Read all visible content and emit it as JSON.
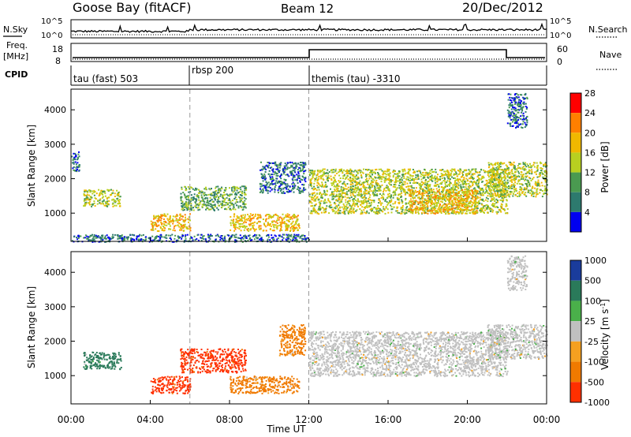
{
  "header": {
    "station": "Goose Bay (fitACF)",
    "beam": "Beam 12",
    "date": "20/Dec/2012"
  },
  "noise_panel": {
    "left_label": "N.Sky",
    "left_ticks": [
      "10^5",
      "10^0"
    ],
    "right_label": "N.Search",
    "right_ticks": [
      "10^5",
      "10^0"
    ]
  },
  "freq_panel": {
    "left_label_1": "Freq.",
    "left_label_2": "[MHz]",
    "left_ticks": [
      "18",
      "8"
    ],
    "right_label": "Nave",
    "right_ticks": [
      "60",
      "0"
    ]
  },
  "cpid": {
    "label": "CPID",
    "segments": [
      {
        "start_hour": 0,
        "text": "tau (fast) 503"
      },
      {
        "start_hour": 6,
        "text": "rbsp 200"
      },
      {
        "start_hour": 12,
        "text": "themis (tau) -3310"
      }
    ]
  },
  "axes": {
    "ylabel": "Slant Range [km]",
    "xlabel": "Time UT",
    "xticks": [
      "00:00",
      "04:00",
      "08:00",
      "12:00",
      "16:00",
      "20:00",
      "00:00"
    ],
    "yticks": [
      "1000",
      "2000",
      "3000",
      "4000"
    ]
  },
  "power_colorbar": {
    "label": "Power [dB]",
    "ticks": [
      "28",
      "24",
      "20",
      "16",
      "12",
      "8",
      "4"
    ],
    "colors": [
      "#ff0000",
      "#ff7f00",
      "#f0b800",
      "#b8d020",
      "#4a9a50",
      "#2d7a6e",
      "#0000f0"
    ]
  },
  "velocity_colorbar": {
    "label": "Velocity [m s",
    "label_sup": "-1",
    "label_end": "]",
    "ticks": [
      "1000",
      "500",
      "100",
      "25",
      "-25",
      "-100",
      "-500",
      "-1000"
    ],
    "colors": [
      "#1a3c9c",
      "#2a7a5a",
      "#4ab04a",
      "#c0c0c0",
      "#f5a020",
      "#f07a00",
      "#ff3000"
    ]
  },
  "chart_data": [
    {
      "type": "heatmap",
      "title": "Power",
      "xlabel": "Time UT",
      "ylabel": "Slant Range [km]",
      "xlim": [
        0,
        24
      ],
      "ylim": [
        180,
        4600
      ],
      "colorbar": "Power [dB]",
      "regions": [
        {
          "t": [
            0.0,
            0.4
          ],
          "r": [
            2200,
            2800
          ],
          "value": 8
        },
        {
          "t": [
            0.6,
            2.5
          ],
          "r": [
            1200,
            1700
          ],
          "value": 16
        },
        {
          "t": [
            4.0,
            6.0
          ],
          "r": [
            500,
            1000
          ],
          "value": 20
        },
        {
          "t": [
            5.5,
            8.8
          ],
          "r": [
            1100,
            1800
          ],
          "value": 12
        },
        {
          "t": [
            8.0,
            11.5
          ],
          "r": [
            500,
            1000
          ],
          "value": 20
        },
        {
          "t": [
            9.5,
            11.8
          ],
          "r": [
            1600,
            2500
          ],
          "value": 8
        },
        {
          "t": [
            12.0,
            22.0
          ],
          "r": [
            1000,
            2300
          ],
          "value": 16
        },
        {
          "t": [
            17.0,
            20.5
          ],
          "r": [
            1000,
            1700
          ],
          "value": 20
        },
        {
          "t": [
            21.0,
            24.0
          ],
          "r": [
            1500,
            2500
          ],
          "value": 16
        },
        {
          "t": [
            22.0,
            23.0
          ],
          "r": [
            3500,
            4500
          ],
          "value": 8
        },
        {
          "t": [
            0.0,
            12.0
          ],
          "r": [
            180,
            400
          ],
          "value": 8
        }
      ]
    },
    {
      "type": "heatmap",
      "title": "Velocity",
      "xlabel": "Time UT",
      "ylabel": "Slant Range [km]",
      "xlim": [
        0,
        24
      ],
      "ylim": [
        180,
        4600
      ],
      "colorbar": "Velocity [m s-1]",
      "regions": [
        {
          "t": [
            0.6,
            2.5
          ],
          "r": [
            1200,
            1700
          ],
          "value": 100
        },
        {
          "t": [
            4.0,
            6.0
          ],
          "r": [
            500,
            1000
          ],
          "value": -500
        },
        {
          "t": [
            5.5,
            8.8
          ],
          "r": [
            1100,
            1800
          ],
          "value": -500
        },
        {
          "t": [
            8.0,
            11.5
          ],
          "r": [
            500,
            1000
          ],
          "value": -100
        },
        {
          "t": [
            10.5,
            11.8
          ],
          "r": [
            1600,
            2500
          ],
          "value": -100
        },
        {
          "t": [
            12.0,
            22.0
          ],
          "r": [
            1000,
            2300
          ],
          "value": 0
        },
        {
          "t": [
            21.0,
            24.0
          ],
          "r": [
            1500,
            2500
          ],
          "value": 0
        },
        {
          "t": [
            22.0,
            23.0
          ],
          "r": [
            3500,
            4500
          ],
          "value": 0
        }
      ]
    }
  ]
}
